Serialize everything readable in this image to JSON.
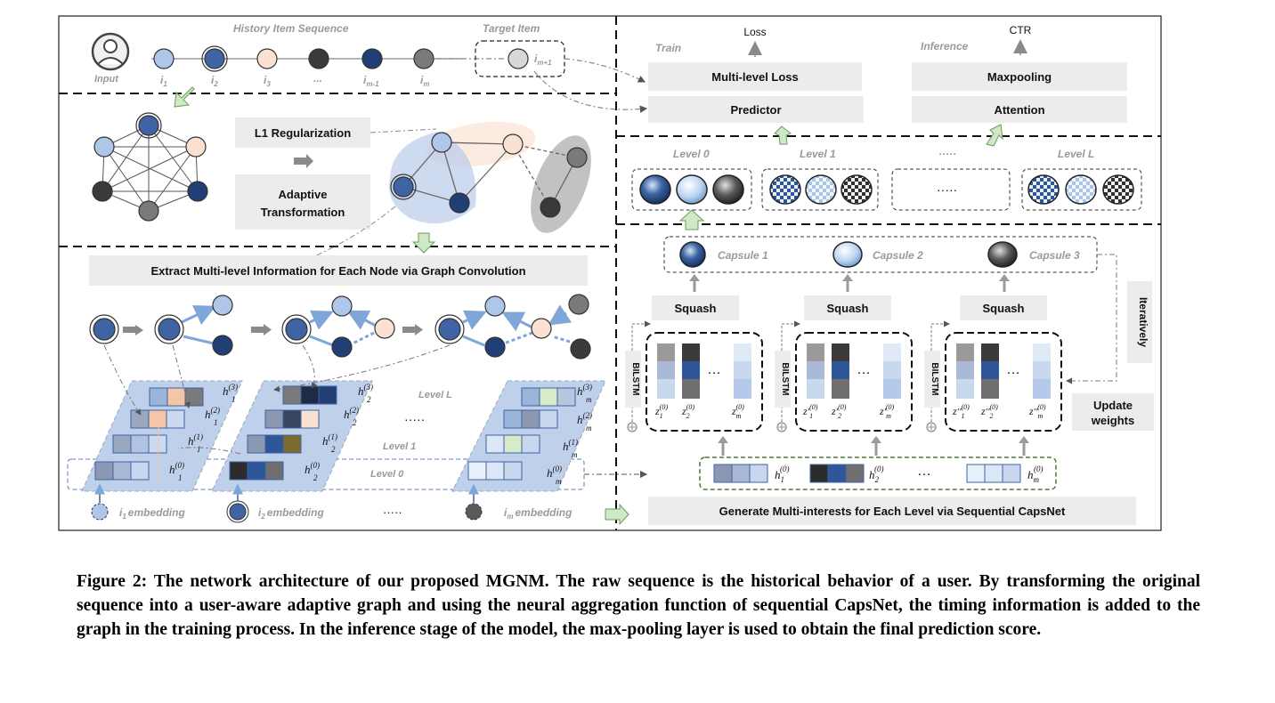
{
  "top": {
    "history_title": "History Item Sequence",
    "target_title": "Target Item",
    "input_label": "Input",
    "item_labels": [
      "i",
      "i",
      "i",
      "...",
      "i",
      "i"
    ],
    "item_subs": [
      "1",
      "2",
      "3",
      "",
      "m-1",
      "m"
    ],
    "target_label": "i",
    "target_sub": "m+1"
  },
  "graph_block": {
    "l1_label": "L1 Regularization",
    "adaptive_label_1": "Adaptive",
    "adaptive_label_2": "Transformation"
  },
  "conv_block": {
    "title": "Extract Multi-level Information for Each Node via Graph Convolution",
    "level_l": "Level L",
    "level_1": "Level 1",
    "level_0": "Level 0",
    "dots": "·····",
    "embeddings": [
      "i",
      "i",
      "i"
    ],
    "embedding_subs": [
      "1",
      "2",
      "m"
    ],
    "embedding_word": "embedding",
    "h1_labels": [
      "h",
      "h",
      "h",
      "h"
    ],
    "h1_sups": [
      "(3)",
      "(2)",
      "(1)",
      "(0)"
    ],
    "h1_sub": "1",
    "h2_sub": "2",
    "hm_sub": "m"
  },
  "right_top": {
    "train_label": "Train",
    "inference_label": "Inference",
    "loss_label": "Loss",
    "ctr_label": "CTR",
    "multi_loss": "Multi-level Loss",
    "predictor": "Predictor",
    "maxpooling": "Maxpooling",
    "attention": "Attention"
  },
  "levels": {
    "labels": [
      "Level 0",
      "Level 1",
      "·····",
      "Level L"
    ],
    "dots": "·····"
  },
  "capsnet": {
    "capsules": [
      "Capsule 1",
      "Capsule 2",
      "Capsule 3"
    ],
    "squash": "Squash",
    "bilstm": "BILSTM",
    "iteratively": "Iteratively",
    "update_1": "Update",
    "update_2": "weights",
    "z_labels": [
      "z",
      "z",
      "z"
    ],
    "z_primes": [
      "",
      "′",
      "′′"
    ],
    "z_sup": "(0)",
    "ellipsis": "…",
    "h_row_labels": [
      "h",
      "h",
      "h"
    ],
    "h_row_subs": [
      "1",
      "2",
      "m"
    ],
    "h_row_sup": "(0)",
    "generate_label": "Generate Multi-interests for Each Level via Sequential CapsNet"
  },
  "caption": "Figure 2: The network architecture of our proposed MGNM. The raw sequence is the historical behavior of a user. By transforming the original sequence into a user-aware adaptive graph and using the neural aggregation function of sequential CapsNet, the timing information is added to the graph in the training process. In the inference stage of the model, the max-pooling layer is used to obtain the final prediction score.",
  "colors": {
    "light_blue": "#aec6e8",
    "dark_blue": "#213f75",
    "mid_blue": "#3f63a3",
    "peach": "#fbe1d1",
    "dark_grey": "#3a3a3a",
    "mid_grey": "#7a7a7a",
    "panel_grey": "#ececec"
  }
}
